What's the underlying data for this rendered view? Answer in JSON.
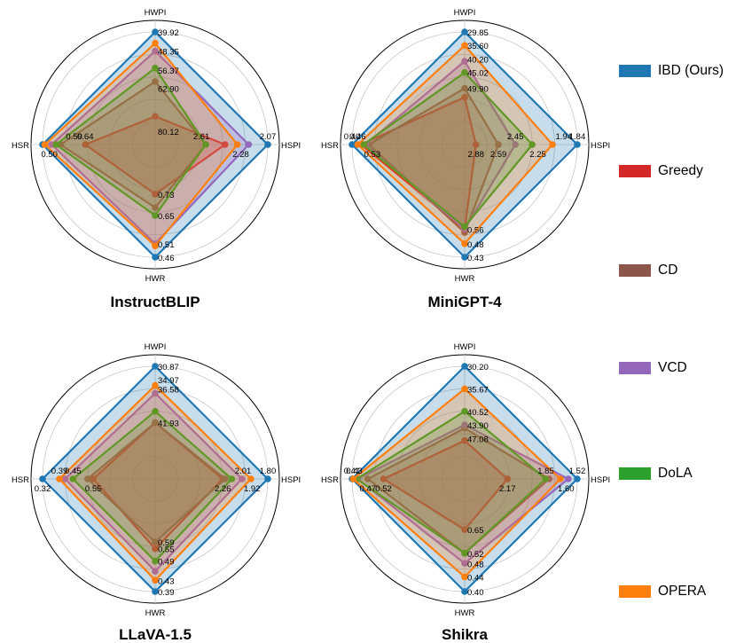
{
  "colors": {
    "IBD (Ours)": "#1f77b4",
    "Greedy": "#d62728",
    "CD": "#8c564b",
    "VCD": "#9467bd",
    "DoLA": "#2ca02c",
    "OPERA": "#ff7f0e"
  },
  "legend": [
    {
      "name": "IBD (Ours)"
    },
    {
      "name": "Greedy"
    },
    {
      "name": "CD"
    },
    {
      "name": "VCD"
    },
    {
      "name": "DoLA"
    },
    {
      "name": "OPERA"
    }
  ],
  "chart_data": [
    {
      "type": "radar",
      "title": "InstructBLIP",
      "axes": [
        "HWPI",
        "HSPI",
        "HWR",
        "HSR"
      ],
      "series": [
        {
          "name": "IBD (Ours)",
          "values": [
            1.0,
            1.0,
            1.0,
            1.0
          ]
        },
        {
          "name": "Greedy",
          "values": [
            0.25,
            0.62,
            0.44,
            0.62
          ]
        },
        {
          "name": "CD",
          "values": [
            0.56,
            0.45,
            0.56,
            0.84
          ]
        },
        {
          "name": "VCD",
          "values": [
            0.83,
            0.83,
            0.88,
            0.92
          ]
        },
        {
          "name": "DoLA",
          "values": [
            0.68,
            0.45,
            0.63,
            0.88
          ]
        },
        {
          "name": "OPERA",
          "values": [
            0.9,
            0.73,
            0.9,
            0.98
          ]
        }
      ],
      "annotations": {
        "HWPI": [
          {
            "text": "39.92",
            "r": 1.0
          },
          {
            "text": "48.35",
            "r": 0.83
          },
          {
            "text": "56.37",
            "r": 0.66
          },
          {
            "text": "62.90",
            "r": 0.5
          },
          {
            "text": "80.12",
            "r": 0.12
          }
        ],
        "HSPI": [
          {
            "text": "2.07",
            "r": 1.0
          },
          {
            "text": "2.28",
            "r": 0.76
          },
          {
            "text": "2.61",
            "r": 0.41
          }
        ],
        "HWR": [
          {
            "text": "0.73",
            "r": 0.44
          },
          {
            "text": "0.65",
            "r": 0.63
          },
          {
            "text": "0.51",
            "r": 0.88
          },
          {
            "text": "0.46",
            "r": 1.0
          }
        ],
        "HSR": [
          {
            "text": "0.64",
            "r": 0.62
          },
          {
            "text": "0.50",
            "r": 0.94
          },
          {
            "text": "0.59",
            "r": 0.72
          }
        ]
      }
    },
    {
      "type": "radar",
      "title": "MiniGPT-4",
      "axes": [
        "HWPI",
        "HSPI",
        "HWR",
        "HSR"
      ],
      "series": [
        {
          "name": "IBD (Ours)",
          "values": [
            1.0,
            1.0,
            1.0,
            1.0
          ]
        },
        {
          "name": "Greedy",
          "values": [
            0.42,
            0.1,
            0.75,
            0.92
          ]
        },
        {
          "name": "CD",
          "values": [
            0.5,
            0.3,
            0.78,
            0.85
          ]
        },
        {
          "name": "VCD",
          "values": [
            0.74,
            0.45,
            0.75,
            0.88
          ]
        },
        {
          "name": "DoLA",
          "values": [
            0.64,
            0.6,
            0.73,
            0.9
          ]
        },
        {
          "name": "OPERA",
          "values": [
            0.88,
            0.78,
            0.88,
            0.95
          ]
        }
      ],
      "annotations": {
        "HWPI": [
          {
            "text": "29.85",
            "r": 1.0
          },
          {
            "text": "35.60",
            "r": 0.88
          },
          {
            "text": "40.20",
            "r": 0.76
          },
          {
            "text": "45.02",
            "r": 0.64
          },
          {
            "text": "49.90",
            "r": 0.5
          }
        ],
        "HSPI": [
          {
            "text": "1.84",
            "r": 1.0
          },
          {
            "text": "2.25",
            "r": 0.65
          },
          {
            "text": "2.45",
            "r": 0.45
          },
          {
            "text": "2.88",
            "r": 0.1
          },
          {
            "text": "1.94",
            "r": 0.88
          },
          {
            "text": "2.59",
            "r": 0.3
          }
        ],
        "HWR": [
          {
            "text": "0.56",
            "r": 0.75
          },
          {
            "text": "0.48",
            "r": 0.88
          },
          {
            "text": "0.43",
            "r": 1.0
          }
        ],
        "HSR": [
          {
            "text": "0.46",
            "r": 0.95
          },
          {
            "text": "0.53",
            "r": 0.82
          },
          {
            "text": "0.40",
            "r": 1.0
          }
        ]
      }
    },
    {
      "type": "radar",
      "title": "LLaVA-1.5",
      "axes": [
        "HWPI",
        "HSPI",
        "HWR",
        "HSR"
      ],
      "series": [
        {
          "name": "IBD (Ours)",
          "values": [
            1.0,
            1.0,
            1.0,
            1.0
          ]
        },
        {
          "name": "Greedy",
          "values": [
            0.5,
            0.6,
            0.62,
            0.55
          ]
        },
        {
          "name": "CD",
          "values": [
            0.5,
            0.62,
            0.56,
            0.6
          ]
        },
        {
          "name": "VCD",
          "values": [
            0.76,
            0.77,
            0.82,
            0.8
          ]
        },
        {
          "name": "DoLA",
          "values": [
            0.6,
            0.68,
            0.73,
            0.73
          ]
        },
        {
          "name": "OPERA",
          "values": [
            0.83,
            0.85,
            0.9,
            0.85
          ]
        }
      ],
      "annotations": {
        "HWPI": [
          {
            "text": "30.87",
            "r": 1.0
          },
          {
            "text": "34.97",
            "r": 0.88
          },
          {
            "text": "36.58",
            "r": 0.8
          },
          {
            "text": "41.93",
            "r": 0.5
          }
        ],
        "HSPI": [
          {
            "text": "1.80",
            "r": 1.0
          },
          {
            "text": "2.26",
            "r": 0.6
          },
          {
            "text": "2.01",
            "r": 0.78
          },
          {
            "text": "1.92",
            "r": 0.86
          }
        ],
        "HWR": [
          {
            "text": "0.59",
            "r": 0.56
          },
          {
            "text": "0.55",
            "r": 0.62
          },
          {
            "text": "0.49",
            "r": 0.73
          },
          {
            "text": "0.43",
            "r": 0.9
          },
          {
            "text": "0.39",
            "r": 1.0
          }
        ],
        "HSR": [
          {
            "text": "0.39",
            "r": 0.85
          },
          {
            "text": "0.55",
            "r": 0.55
          },
          {
            "text": "0.45",
            "r": 0.73
          },
          {
            "text": "0.32",
            "r": 1.0
          }
        ]
      }
    },
    {
      "type": "radar",
      "title": "Shikra",
      "axes": [
        "HWPI",
        "HSPI",
        "HWR",
        "HSR"
      ],
      "series": [
        {
          "name": "IBD (Ours)",
          "values": [
            1.0,
            1.0,
            1.0,
            1.0
          ]
        },
        {
          "name": "Greedy",
          "values": [
            0.34,
            0.38,
            0.45,
            0.72
          ]
        },
        {
          "name": "CD",
          "values": [
            0.45,
            0.75,
            0.66,
            0.86
          ]
        },
        {
          "name": "VCD",
          "values": [
            0.48,
            0.92,
            0.75,
            0.95
          ]
        },
        {
          "name": "DoLA",
          "values": [
            0.6,
            0.72,
            0.66,
            0.96
          ]
        },
        {
          "name": "OPERA",
          "values": [
            0.8,
            0.85,
            0.87,
            0.99
          ]
        }
      ],
      "annotations": {
        "HWPI": [
          {
            "text": "30.20",
            "r": 1.0
          },
          {
            "text": "35.67",
            "r": 0.8
          },
          {
            "text": "40.52",
            "r": 0.6
          },
          {
            "text": "43.90",
            "r": 0.48
          },
          {
            "text": "47.08",
            "r": 0.36
          }
        ],
        "HSPI": [
          {
            "text": "1.52",
            "r": 1.0
          },
          {
            "text": "2.17",
            "r": 0.38
          },
          {
            "text": "1.85",
            "r": 0.72
          },
          {
            "text": "1.60",
            "r": 0.9
          }
        ],
        "HWR": [
          {
            "text": "0.65",
            "r": 0.45
          },
          {
            "text": "0.52",
            "r": 0.66
          },
          {
            "text": "0.48",
            "r": 0.75
          },
          {
            "text": "0.44",
            "r": 0.87
          },
          {
            "text": "0.40",
            "r": 1.0
          }
        ],
        "HSR": [
          {
            "text": "0.43",
            "r": 0.98
          },
          {
            "text": "0.52",
            "r": 0.72
          },
          {
            "text": "0.41",
            "r": 1.0
          },
          {
            "text": "0.47",
            "r": 0.86
          }
        ]
      }
    }
  ]
}
